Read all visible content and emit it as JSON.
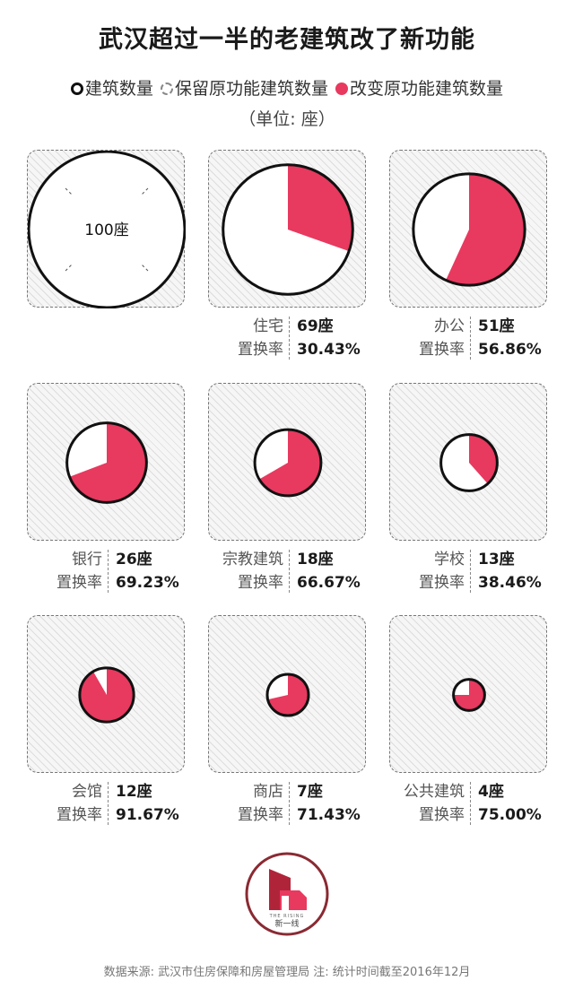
{
  "title": "武汉超过一半的老建筑改了新功能",
  "legend": [
    {
      "key": "total",
      "label": "建筑数量"
    },
    {
      "key": "keep",
      "label": "保留原功能建筑数量"
    },
    {
      "key": "change",
      "label": "改变原功能建筑数量"
    }
  ],
  "unit": "（单位: 座）",
  "rate_label": "置换率",
  "colors": {
    "change": "#e8395f",
    "outline": "#111111",
    "keep": "#ffffff"
  },
  "chart_data": {
    "type": "pie",
    "reference": {
      "label": "100座",
      "value": 100
    },
    "categories": [
      {
        "name": "住宅",
        "count": 69,
        "count_text": "69座",
        "rate": 30.43,
        "rate_text": "30.43%"
      },
      {
        "name": "办公",
        "count": 51,
        "count_text": "51座",
        "rate": 56.86,
        "rate_text": "56.86%"
      },
      {
        "name": "银行",
        "count": 26,
        "count_text": "26座",
        "rate": 69.23,
        "rate_text": "69.23%"
      },
      {
        "name": "宗教建筑",
        "count": 18,
        "count_text": "18座",
        "rate": 66.67,
        "rate_text": "66.67%"
      },
      {
        "name": "学校",
        "count": 13,
        "count_text": "13座",
        "rate": 38.46,
        "rate_text": "38.46%"
      },
      {
        "name": "会馆",
        "count": 12,
        "count_text": "12座",
        "rate": 91.67,
        "rate_text": "91.67%"
      },
      {
        "name": "商店",
        "count": 7,
        "count_text": "7座",
        "rate": 71.43,
        "rate_text": "71.43%"
      },
      {
        "name": "公共建筑",
        "count": 4,
        "count_text": "4座",
        "rate": 75.0,
        "rate_text": "75.00%"
      }
    ]
  },
  "logo": {
    "brand_small": "THE RISING",
    "brand_name": "新一线"
  },
  "source": "数据来源: 武汉市住房保障和房屋管理局 注: 统计时间截至2016年12月"
}
